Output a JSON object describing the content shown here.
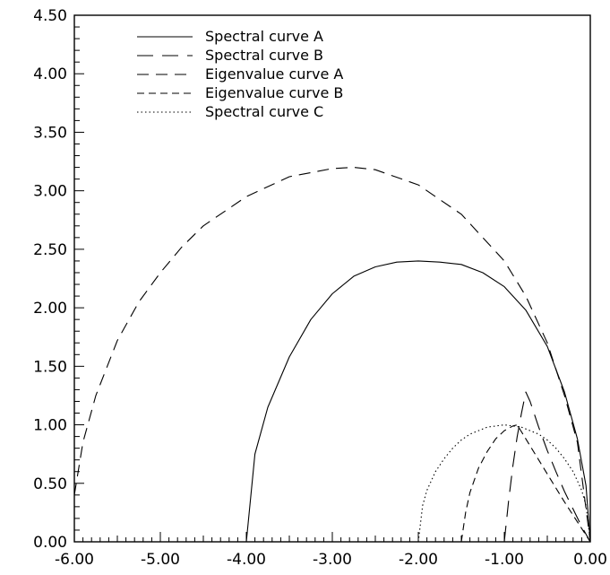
{
  "chart_data": {
    "type": "line",
    "title": "",
    "xlabel": "",
    "ylabel": "",
    "xlim": [
      -6.0,
      0.0
    ],
    "ylim": [
      0.0,
      4.5
    ],
    "x_ticks": [
      "-6.00",
      "-5.00",
      "-4.00",
      "-3.00",
      "-2.00",
      "-1.00",
      "0.00"
    ],
    "y_ticks": [
      "0.00",
      "0.50",
      "1.00",
      "1.50",
      "2.00",
      "2.50",
      "3.00",
      "3.50",
      "4.00",
      "4.50"
    ],
    "grid": false,
    "legend_position": "top-left",
    "series": [
      {
        "name": "Spectral curve A",
        "style": "solid",
        "x": [
          -4.0,
          -3.9,
          -3.75,
          -3.5,
          -3.25,
          -3.0,
          -2.75,
          -2.5,
          -2.25,
          -2.0,
          -1.75,
          -1.5,
          -1.25,
          -1.0,
          -0.75,
          -0.5,
          -0.3,
          -0.15,
          -0.05,
          0.0
        ],
        "y": [
          0.0,
          0.75,
          1.15,
          1.58,
          1.9,
          2.12,
          2.27,
          2.35,
          2.39,
          2.4,
          2.39,
          2.37,
          2.3,
          2.18,
          1.98,
          1.67,
          1.28,
          0.88,
          0.48,
          0.0
        ]
      },
      {
        "name": "Spectral curve B",
        "style": "long-dash",
        "x": [
          -1.0,
          -0.95,
          -0.9,
          -0.85,
          -0.8,
          -0.75,
          -0.7,
          -0.6,
          -0.5,
          -0.4,
          -0.3,
          -0.2,
          -0.1,
          0.0
        ],
        "y": [
          0.0,
          0.35,
          0.65,
          0.9,
          1.1,
          1.28,
          1.2,
          0.98,
          0.78,
          0.6,
          0.43,
          0.28,
          0.13,
          0.0
        ]
      },
      {
        "name": "Eigenvalue curve A",
        "style": "dash",
        "x": [
          -6.0,
          -5.9,
          -5.75,
          -5.5,
          -5.25,
          -5.0,
          -4.75,
          -4.5,
          -4.0,
          -3.5,
          -3.0,
          -2.75,
          -2.5,
          -2.0,
          -1.5,
          -1.0,
          -0.75,
          -0.5,
          -0.3,
          -0.15,
          0.0
        ],
        "y": [
          0.4,
          0.85,
          1.25,
          1.72,
          2.05,
          2.3,
          2.52,
          2.7,
          2.95,
          3.12,
          3.19,
          3.2,
          3.18,
          3.05,
          2.8,
          2.4,
          2.1,
          1.7,
          1.25,
          0.85,
          0.0
        ]
      },
      {
        "name": "Eigenvalue curve B",
        "style": "short-dash",
        "x": [
          -1.5,
          -1.45,
          -1.4,
          -1.3,
          -1.2,
          -1.1,
          -1.0,
          -0.9,
          -0.85,
          -0.75,
          -0.6,
          -0.45,
          -0.3,
          -0.15,
          0.0
        ],
        "y": [
          0.0,
          0.25,
          0.42,
          0.63,
          0.77,
          0.88,
          0.95,
          0.99,
          1.0,
          0.88,
          0.7,
          0.52,
          0.34,
          0.17,
          0.0
        ]
      },
      {
        "name": "Spectral curve C",
        "style": "dotted",
        "x": [
          -2.0,
          -1.95,
          -1.9,
          -1.8,
          -1.7,
          -1.6,
          -1.5,
          -1.4,
          -1.3,
          -1.2,
          -1.1,
          -1.0,
          -0.9,
          -0.8,
          -0.7,
          -0.6,
          -0.5,
          -0.4,
          -0.3,
          -0.2,
          -0.1,
          -0.05,
          0.0
        ],
        "y": [
          0.0,
          0.31,
          0.44,
          0.6,
          0.71,
          0.8,
          0.87,
          0.92,
          0.95,
          0.98,
          0.99,
          1.0,
          0.99,
          0.98,
          0.95,
          0.92,
          0.87,
          0.8,
          0.71,
          0.6,
          0.44,
          0.31,
          0.0
        ]
      }
    ]
  }
}
